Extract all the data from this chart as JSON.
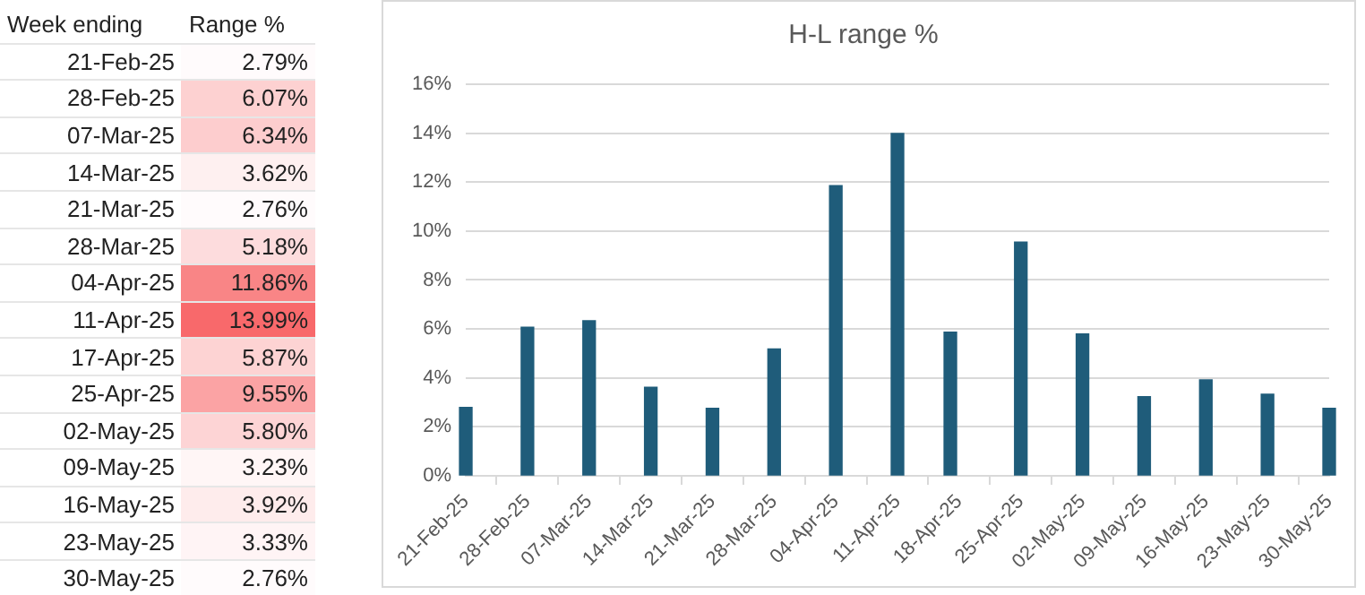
{
  "chart_data": [
    {
      "type": "other",
      "annotations": [
        "Week ending",
        "Range %",
        "21-Feb-25",
        "28-Feb-25",
        "07-Mar-25",
        "14-Mar-25",
        "21-Mar-25",
        "28-Mar-25",
        "04-Apr-25",
        "11-Apr-25",
        "17-Apr-25",
        "25-Apr-25",
        "02-May-25",
        "09-May-25",
        "16-May-25",
        "23-May-25",
        "30-May-25",
        "2.79%",
        "6.07%",
        "6.34%",
        "3.62%",
        "2.76%",
        "5.18%",
        "11.86%",
        "13.99%",
        "5.87%",
        "9.55%",
        "5.80%",
        "3.23%",
        "3.92%",
        "3.33%",
        "2.76%"
      ]
    },
    {
      "type": "bar",
      "title": "H-L range %",
      "x": [
        "--02-21",
        "--02-28",
        "--03-07",
        "--03-14",
        "--03-21",
        "--03-28",
        "--04-04",
        "--04-11",
        "--04-17",
        "--04-25",
        "--05-02",
        "--05-09",
        "--05-16",
        "--05-23",
        "--05-30"
      ],
      "values": [
        2.79,
        6.07,
        6.34,
        3.62,
        2.76,
        5.18,
        11.86,
        13.99,
        5.87,
        9.55,
        5.8,
        3.23,
        3.92,
        3.33,
        2.76
      ],
      "color": "#1f5c7a",
      "xlim": [
        "--02-21",
        "--05-30"
      ],
      "xticks": [
        {
          "value": "--02-21",
          "label": "21-Feb-25"
        },
        {
          "value": "--02-28",
          "label": "28-Feb-25"
        },
        {
          "value": "--03-07",
          "label": "07-Mar-25"
        },
        {
          "value": "--03-14",
          "label": "14-Mar-25"
        },
        {
          "value": "--03-21",
          "label": "21-Mar-25"
        },
        {
          "value": "--03-28",
          "label": "28-Mar-25"
        },
        {
          "value": "--04-04",
          "label": "04-Apr-25"
        },
        {
          "value": "--04-11",
          "label": "11-Apr-25"
        },
        {
          "value": "--04-18",
          "label": "18-Apr-25"
        },
        {
          "value": "--04-25",
          "label": "25-Apr-25"
        },
        {
          "value": "--05-02",
          "label": "02-May-25"
        },
        {
          "value": "--05-09",
          "label": "09-May-25"
        },
        {
          "value": "--05-16",
          "label": "16-May-25"
        },
        {
          "value": "--05-23",
          "label": "23-May-25"
        },
        {
          "value": "--05-30",
          "label": "30-May-25"
        }
      ],
      "ylim": [
        0,
        16
      ],
      "yticks": [
        {
          "value": 0,
          "label": "0%"
        },
        {
          "value": 2,
          "label": "2%"
        },
        {
          "value": 4,
          "label": "4%"
        },
        {
          "value": 6,
          "label": "6%"
        },
        {
          "value": 8,
          "label": "8%"
        },
        {
          "value": 10,
          "label": "10%"
        },
        {
          "value": 12,
          "label": "12%"
        },
        {
          "value": 14,
          "label": "14%"
        },
        {
          "value": 16,
          "label": "16%"
        }
      ],
      "grid": "y",
      "legend": false
    }
  ]
}
